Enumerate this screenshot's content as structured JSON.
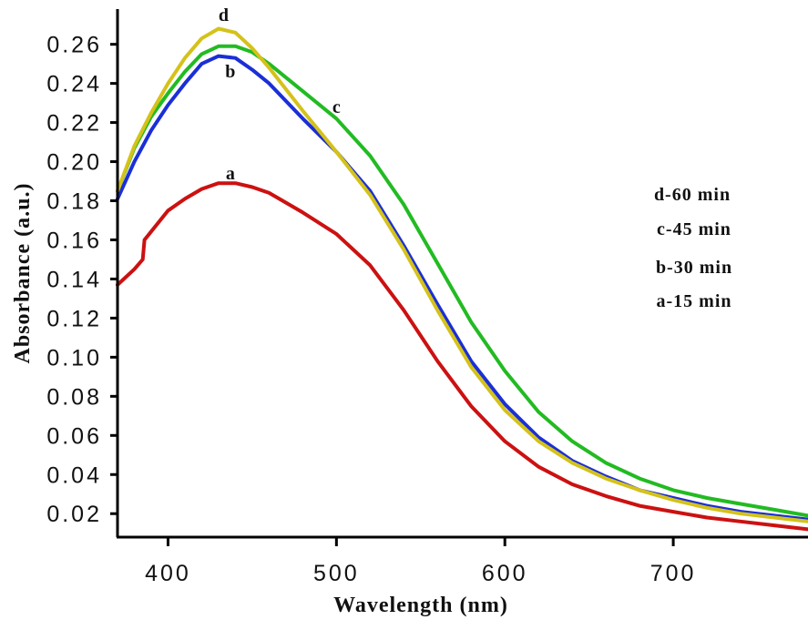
{
  "chart_data": {
    "type": "line",
    "xlabel": "Wavelength (nm)",
    "ylabel": "Absorbance (a.u.)",
    "xlim": [
      370,
      780
    ],
    "ylim": [
      0.008,
      0.278
    ],
    "x_ticks": [
      400,
      500,
      600,
      700
    ],
    "y_ticks": [
      0.02,
      0.04,
      0.06,
      0.08,
      0.1,
      0.12,
      0.14,
      0.16,
      0.18,
      0.2,
      0.22,
      0.24,
      0.26
    ],
    "y_tick_labels": [
      "0.02",
      "0.04",
      "0.06",
      "0.08",
      "0.10",
      "0.12",
      "0.14",
      "0.16",
      "0.18",
      "0.20",
      "0.22",
      "0.24",
      "0.26"
    ],
    "x_tick_labels": [
      "400",
      "500",
      "600",
      "700"
    ],
    "grid": false,
    "legend": {
      "placement": "right",
      "entries": [
        "d-60 min",
        "c-45 min",
        "b-30 min",
        "a-15 min"
      ]
    },
    "series": [
      {
        "name": "a",
        "color": "#cc1111",
        "x": [
          370,
          380,
          385,
          386,
          400,
          410,
          420,
          430,
          440,
          450,
          460,
          480,
          500,
          520,
          540,
          560,
          580,
          600,
          620,
          640,
          660,
          680,
          700,
          720,
          740,
          760,
          780
        ],
        "y": [
          0.137,
          0.145,
          0.15,
          0.16,
          0.175,
          0.181,
          0.186,
          0.189,
          0.189,
          0.187,
          0.184,
          0.174,
          0.163,
          0.147,
          0.124,
          0.098,
          0.075,
          0.057,
          0.044,
          0.035,
          0.029,
          0.024,
          0.021,
          0.018,
          0.016,
          0.014,
          0.012
        ]
      },
      {
        "name": "b",
        "color": "#1a2fd6",
        "x": [
          370,
          380,
          390,
          400,
          410,
          420,
          430,
          440,
          450,
          460,
          480,
          500,
          520,
          540,
          560,
          580,
          600,
          620,
          640,
          660,
          680,
          700,
          720,
          740,
          760,
          780
        ],
        "y": [
          0.181,
          0.2,
          0.216,
          0.229,
          0.24,
          0.25,
          0.254,
          0.253,
          0.247,
          0.24,
          0.222,
          0.205,
          0.185,
          0.157,
          0.127,
          0.098,
          0.076,
          0.059,
          0.047,
          0.039,
          0.032,
          0.028,
          0.024,
          0.021,
          0.019,
          0.017
        ]
      },
      {
        "name": "c",
        "color": "#22bb22",
        "x": [
          370,
          380,
          390,
          400,
          410,
          420,
          430,
          440,
          450,
          460,
          480,
          500,
          520,
          540,
          560,
          580,
          600,
          620,
          640,
          660,
          680,
          700,
          720,
          740,
          760,
          780
        ],
        "y": [
          0.185,
          0.207,
          0.223,
          0.235,
          0.246,
          0.255,
          0.259,
          0.259,
          0.256,
          0.25,
          0.236,
          0.222,
          0.203,
          0.178,
          0.148,
          0.118,
          0.093,
          0.072,
          0.057,
          0.046,
          0.038,
          0.032,
          0.028,
          0.025,
          0.022,
          0.019
        ]
      },
      {
        "name": "d",
        "color": "#d4c21a",
        "x": [
          370,
          380,
          390,
          400,
          410,
          420,
          430,
          440,
          450,
          460,
          480,
          500,
          520,
          540,
          560,
          580,
          600,
          620,
          640,
          660,
          680,
          700,
          720,
          740,
          760,
          780
        ],
        "y": [
          0.185,
          0.208,
          0.225,
          0.24,
          0.253,
          0.263,
          0.268,
          0.266,
          0.258,
          0.248,
          0.226,
          0.205,
          0.183,
          0.155,
          0.124,
          0.095,
          0.073,
          0.057,
          0.046,
          0.038,
          0.032,
          0.027,
          0.023,
          0.02,
          0.018,
          0.016
        ]
      }
    ],
    "curve_labels": [
      {
        "text": "a",
        "x": 437,
        "y": 0.191
      },
      {
        "text": "b",
        "x": 437,
        "y": 0.243
      },
      {
        "text": "c",
        "x": 500,
        "y": 0.225
      },
      {
        "text": "d",
        "x": 433,
        "y": 0.272
      }
    ]
  }
}
